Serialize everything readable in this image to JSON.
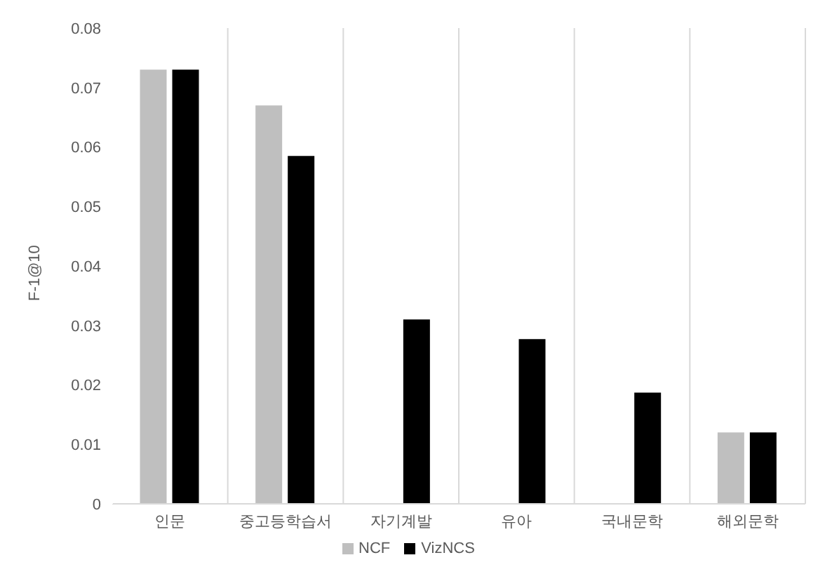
{
  "chart_data": {
    "type": "bar",
    "ylabel": "F-1@10",
    "categories": [
      "인문",
      "중고등학습서",
      "자기계발",
      "유아",
      "국내문학",
      "해외문학"
    ],
    "series": [
      {
        "name": "NCF",
        "color": "#bfbfbf",
        "values": [
          0.073,
          0.067,
          0,
          0,
          0,
          0.012
        ]
      },
      {
        "name": "VizNCS",
        "color": "#000000",
        "values": [
          0.073,
          0.0585,
          0.031,
          0.0277,
          0.0187,
          0.012
        ]
      }
    ],
    "ylim": [
      0,
      0.08
    ],
    "yticks": [
      0,
      0.01,
      0.02,
      0.03,
      0.04,
      0.05,
      0.06,
      0.07,
      0.08
    ],
    "grid": "x",
    "legend": "bottom"
  }
}
